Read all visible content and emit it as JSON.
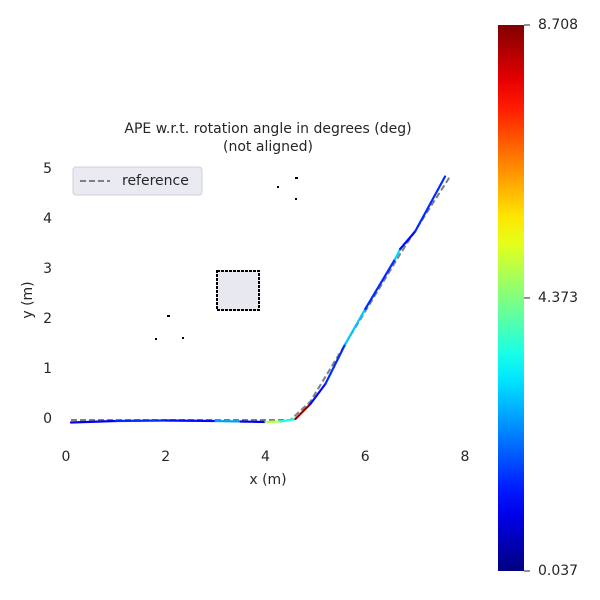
{
  "chart_data": {
    "type": "trajectory",
    "title": "APE w.r.t. rotation angle in degrees (deg)",
    "subtitle": "(not aligned)",
    "xlabel": "x (m)",
    "ylabel": "y (m)",
    "xlim": [
      -0.1,
      8.1
    ],
    "ylim": [
      -0.52,
      5.28
    ],
    "xticks": [
      0,
      2,
      4,
      6,
      8
    ],
    "yticks": [
      0,
      1,
      2,
      3,
      4,
      5
    ],
    "legend": "upper left",
    "reference": {
      "name": "reference",
      "color": "#808080",
      "x": [
        0.1,
        4.5,
        4.9,
        5.6,
        6.7,
        7.7
      ],
      "y": [
        -0.02,
        -0.02,
        0.35,
        1.5,
        3.3,
        4.85
      ]
    },
    "trajectory": {
      "x": [
        0.1,
        1.0,
        2.0,
        3.0,
        3.5,
        4.0,
        4.3,
        4.6,
        4.9,
        5.2,
        5.6,
        6.0,
        6.6,
        6.7,
        7.0,
        7.6
      ],
      "y": [
        -0.07,
        -0.04,
        -0.03,
        -0.04,
        -0.05,
        -0.06,
        -0.05,
        0.0,
        0.3,
        0.7,
        1.5,
        2.2,
        3.2,
        3.4,
        3.75,
        4.85
      ],
      "values": [
        1.0,
        1.5,
        1.2,
        2.5,
        1.0,
        4.8,
        3.5,
        8.5,
        1.2,
        1.5,
        2.8,
        1.5,
        3.0,
        1.2,
        1.5,
        1.2
      ]
    },
    "colormap": "jet",
    "colorbar": {
      "lim": [
        0.037,
        8.708
      ],
      "ticks": [
        0.037,
        4.373,
        8.708
      ]
    }
  }
}
